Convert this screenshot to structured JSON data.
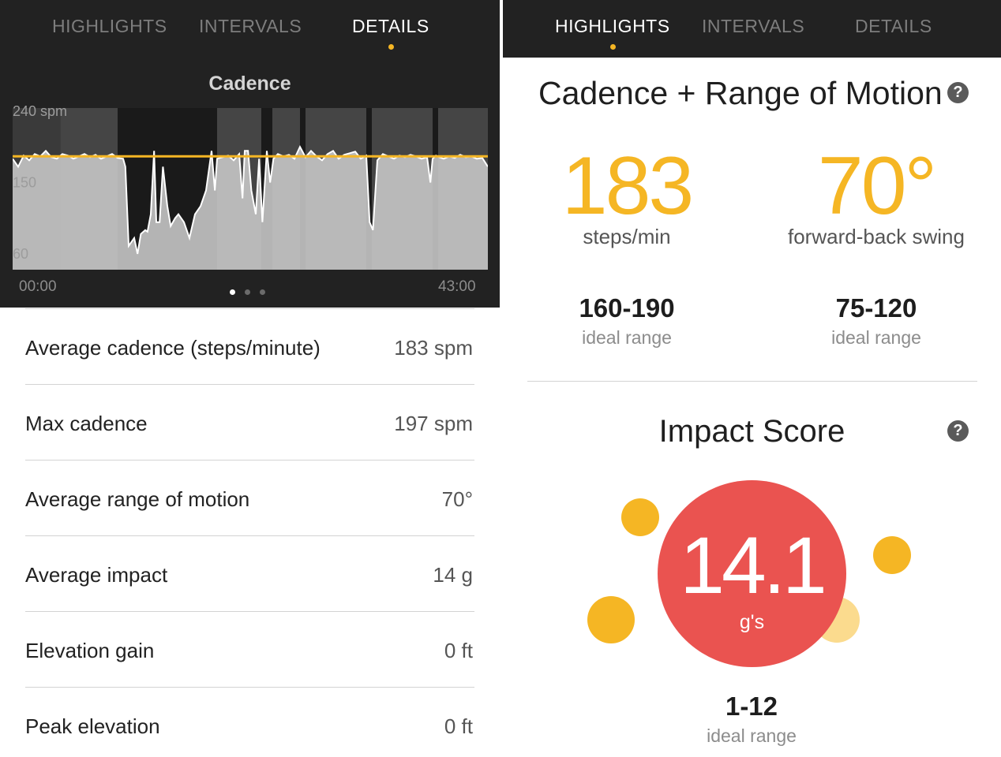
{
  "left_panel": {
    "tabs": [
      {
        "label": "HIGHLIGHTS",
        "active": false
      },
      {
        "label": "INTERVALS",
        "active": false
      },
      {
        "label": "DETAILS",
        "active": true
      }
    ],
    "chart": {
      "title": "Cadence",
      "start_time": "00:00",
      "end_time": "43:00",
      "page_indicator": {
        "pages": 3,
        "current": 1
      }
    },
    "stats": [
      {
        "label": "Average cadence (steps/minute)",
        "value": "183 spm"
      },
      {
        "label": "Max cadence",
        "value": "197 spm"
      },
      {
        "label": "Average range of motion",
        "value": "70°"
      },
      {
        "label": "Average impact",
        "value": "14 g"
      },
      {
        "label": "Elevation gain",
        "value": "0 ft"
      },
      {
        "label": "Peak elevation",
        "value": "0 ft"
      }
    ]
  },
  "right_panel": {
    "tabs": [
      {
        "label": "HIGHLIGHTS",
        "active": true
      },
      {
        "label": "INTERVALS",
        "active": false
      },
      {
        "label": "DETAILS",
        "active": false
      }
    ],
    "cadence_rom": {
      "title": "Cadence + Range of Motion",
      "help_glyph": "?",
      "cadence": {
        "value": "183",
        "unit": "steps/min",
        "ideal": "160-190",
        "ideal_label": "ideal range"
      },
      "swing": {
        "value": "70°",
        "unit": "forward-back swing",
        "ideal": "75-120",
        "ideal_label": "ideal range"
      }
    },
    "impact": {
      "title": "Impact Score",
      "help_glyph": "?",
      "score": "14.1",
      "unit": "g's",
      "ideal": "1-12",
      "ideal_label": "ideal range"
    }
  },
  "colors": {
    "accent_yellow": "#f5b624",
    "score_red": "#ea5350",
    "header_dark": "#222222",
    "chart_fill": "#d4d4d4",
    "average_line": "#f5b624"
  },
  "chart_data": {
    "type": "area",
    "title": "Cadence",
    "ylabel": "",
    "y_unit": "spm",
    "y_ticks": [
      {
        "value": 240,
        "label": "240 spm"
      },
      {
        "value": 150,
        "label": "150"
      },
      {
        "value": 60,
        "label": "60"
      }
    ],
    "ylim": [
      40,
      244
    ],
    "xlim": [
      0,
      43
    ],
    "x_tick_labels": [
      "00:00",
      "43:00"
    ],
    "average_line": 183,
    "interval_shading": [
      [
        4.3,
        9.5
      ],
      [
        18.5,
        22.5
      ],
      [
        23.5,
        26
      ],
      [
        26.5,
        32
      ],
      [
        32.5,
        38
      ],
      [
        38.5,
        43
      ]
    ],
    "series": [
      {
        "x": [
          0,
          0.5,
          1,
          1.5,
          2,
          2.5,
          3,
          3.5,
          4,
          4.5,
          5,
          5.5,
          6,
          6.5,
          7,
          7.5,
          8,
          8.5,
          9,
          9.5,
          10,
          10.2,
          10.5,
          11,
          11.3,
          11.6,
          12,
          12.2,
          12.5,
          12.8,
          13,
          13.3,
          13.6,
          14,
          14.3,
          14.7,
          15,
          15.5,
          16,
          16.5,
          17,
          17.5,
          17.8,
          18,
          18.3,
          18.5,
          19,
          19.5,
          20,
          20.5,
          20.8,
          21,
          21.3,
          21.6,
          22,
          22.3,
          22.6,
          23,
          23.3,
          23.6,
          24,
          24.5,
          25,
          25.5,
          26,
          26.5,
          27,
          27.5,
          28,
          28.5,
          29,
          29.5,
          30,
          30.5,
          31,
          31.5,
          32,
          32.3,
          32.6,
          33,
          33.5,
          34,
          34.5,
          35,
          35.5,
          36,
          36.5,
          37,
          37.5,
          37.8,
          38,
          38.3,
          38.6,
          39,
          39.5,
          40,
          40.5,
          41,
          41.5,
          42,
          42.5,
          43
        ],
        "y": [
          180,
          170,
          184,
          178,
          186,
          183,
          190,
          182,
          180,
          186,
          184,
          180,
          183,
          186,
          182,
          185,
          180,
          183,
          186,
          181,
          180,
          170,
          70,
          80,
          60,
          85,
          90,
          88,
          110,
          190,
          100,
          100,
          170,
          120,
          95,
          105,
          110,
          100,
          80,
          110,
          120,
          140,
          170,
          190,
          140,
          180,
          182,
          184,
          178,
          186,
          130,
          190,
          190,
          140,
          110,
          180,
          100,
          190,
          150,
          180,
          186,
          183,
          185,
          180,
          195,
          182,
          190,
          183,
          178,
          186,
          190,
          180,
          185,
          187,
          189,
          180,
          184,
          100,
          90,
          178,
          186,
          183,
          180,
          184,
          182,
          185,
          183,
          180,
          182,
          150,
          180,
          184,
          182,
          180,
          183,
          181,
          185,
          182,
          183,
          180,
          181,
          170
        ]
      }
    ]
  }
}
